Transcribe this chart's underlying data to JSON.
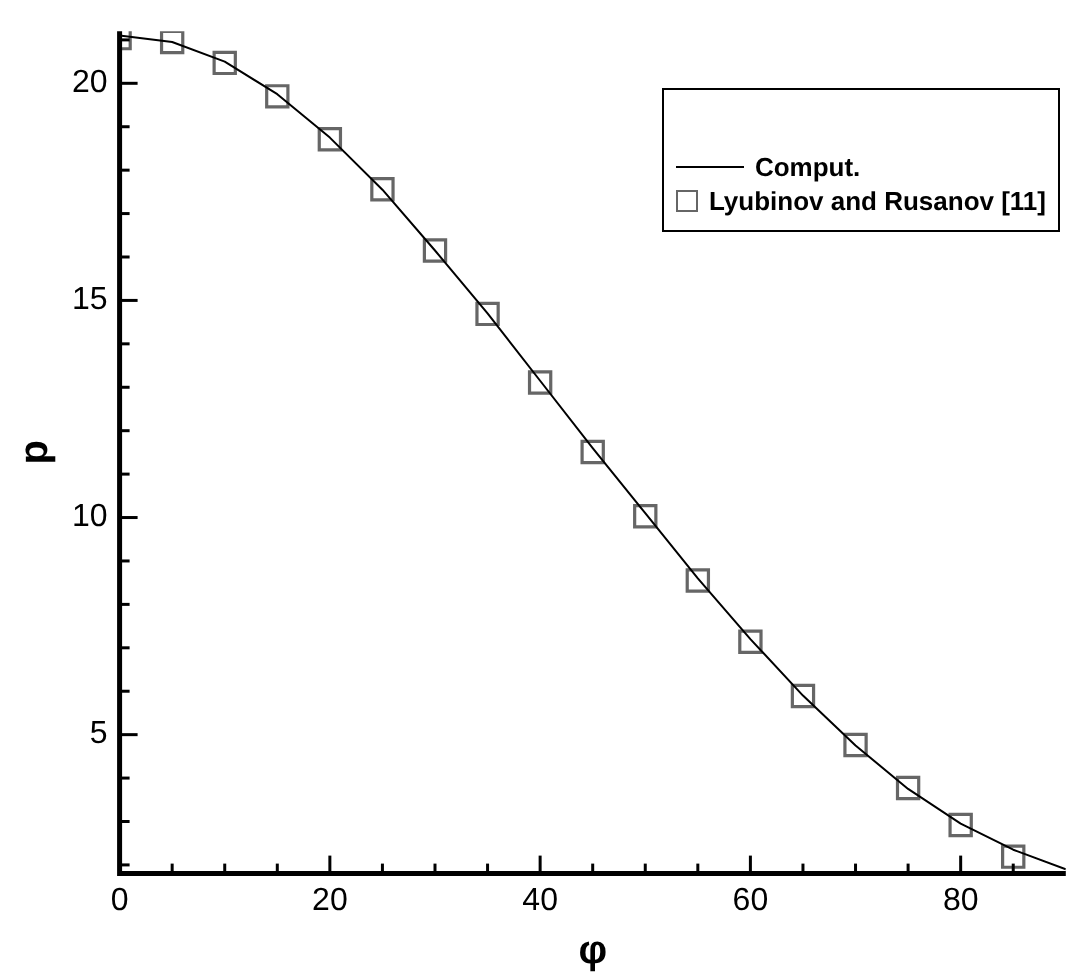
{
  "chart_data": {
    "type": "line",
    "xlabel": "φ",
    "ylabel": "p",
    "xlim": [
      0,
      90
    ],
    "ylim": [
      1.8,
      21.2
    ],
    "xticks": [
      0,
      {
        "value": 5,
        "label": null
      },
      {
        "value": 10,
        "label": null
      },
      {
        "value": 15,
        "label": null
      },
      20,
      {
        "value": 25,
        "label": null
      },
      {
        "value": 30,
        "label": null
      },
      {
        "value": 35,
        "label": null
      },
      40,
      {
        "value": 45,
        "label": null
      },
      {
        "value": 50,
        "label": null
      },
      {
        "value": 55,
        "label": null
      },
      60,
      {
        "value": 65,
        "label": null
      },
      {
        "value": 70,
        "label": null
      },
      {
        "value": 75,
        "label": null
      },
      80,
      {
        "value": 85,
        "label": null
      }
    ],
    "yticks": [
      {
        "value": 2,
        "label": null
      },
      {
        "value": 3,
        "label": null
      },
      {
        "value": 4,
        "label": null
      },
      5,
      {
        "value": 6,
        "label": null
      },
      {
        "value": 7,
        "label": null
      },
      {
        "value": 8,
        "label": null
      },
      {
        "value": 9,
        "label": null
      },
      10,
      {
        "value": 11,
        "label": null
      },
      {
        "value": 12,
        "label": null
      },
      {
        "value": 13,
        "label": null
      },
      {
        "value": 14,
        "label": null
      },
      15,
      {
        "value": 16,
        "label": null
      },
      {
        "value": 17,
        "label": null
      },
      {
        "value": 18,
        "label": null
      },
      {
        "value": 19,
        "label": null
      },
      20,
      {
        "value": 21,
        "label": null
      }
    ],
    "grid": false,
    "legend": "top right",
    "series": [
      {
        "name": "Comput.",
        "type": "line",
        "color": "#000000",
        "marker": "none",
        "line_style": "solid",
        "x": [
          0,
          5,
          10,
          15,
          20,
          25,
          30,
          35,
          40,
          45,
          50,
          55,
          60,
          65,
          70,
          75,
          80,
          85,
          90
        ],
        "values": [
          21.1,
          20.95,
          20.5,
          19.75,
          18.75,
          17.55,
          16.15,
          14.7,
          13.15,
          11.6,
          10.1,
          8.6,
          7.2,
          5.9,
          4.75,
          3.75,
          2.95,
          2.35,
          1.9
        ]
      },
      {
        "name": "Lyubinov and Rusanov [11]",
        "type": "scatter",
        "color": "#666666",
        "marker": "square",
        "x": [
          0,
          5,
          10,
          15,
          20,
          25,
          30,
          35,
          40,
          45,
          50,
          55,
          60,
          65,
          70,
          75,
          80,
          85
        ],
        "values": [
          21.04,
          20.95,
          20.47,
          19.7,
          18.71,
          17.56,
          16.15,
          14.69,
          13.11,
          11.51,
          10.03,
          8.55,
          7.14,
          5.89,
          4.76,
          3.77,
          2.92,
          2.19
        ]
      }
    ]
  }
}
